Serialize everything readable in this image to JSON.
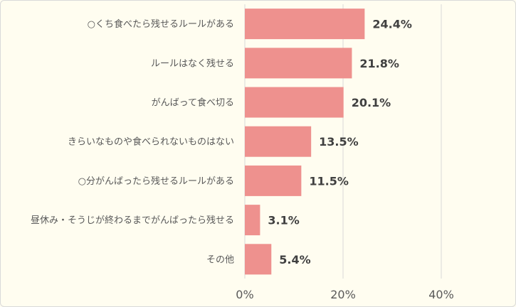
{
  "chart_data": {
    "type": "bar",
    "orientation": "horizontal",
    "categories": [
      "○くち食べたら残せるルールがある",
      "ルールはなく残せる",
      "がんばって食べ切る",
      "きらいなものや食べられないものはない",
      "○分がんばったら残せるルールがある",
      "昼休み・そうじが終わるまでがんばったら残せる",
      "その他"
    ],
    "values": [
      24.4,
      21.8,
      20.1,
      13.5,
      11.5,
      3.1,
      5.4
    ],
    "value_labels": [
      "24.4%",
      "21.8%",
      "20.1%",
      "13.5%",
      "11.5%",
      "3.1%",
      "5.4%"
    ],
    "xlim": [
      0,
      55
    ],
    "ticks": [
      0,
      20,
      40
    ],
    "tick_labels": [
      "0%",
      "20%",
      "40%"
    ],
    "grid": true,
    "bar_color": "#ee918e",
    "grid_color": "#d9d9d9",
    "background": "#fffdf0"
  }
}
